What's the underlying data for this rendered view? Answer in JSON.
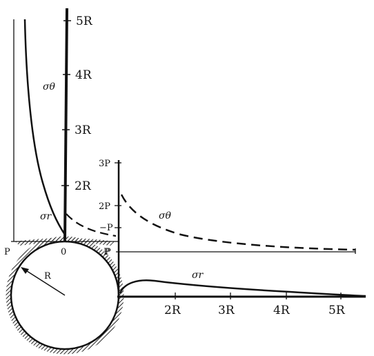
{
  "vertical_axis": {
    "ticks": [
      "2R",
      "3R",
      "4R",
      "5R"
    ]
  },
  "horizontal_axis": {
    "ticks": [
      "2R",
      "3R",
      "4R",
      "5R"
    ]
  },
  "stress_axis_vertical": {
    "ticks": [
      "3P",
      "2P",
      "P"
    ],
    "minus_p": "−P"
  },
  "stress_axis_horizontal": {
    "left_end": "P",
    "origin": "0",
    "right_end": "P"
  },
  "hole": {
    "radius_label": "R"
  },
  "curve_labels": {
    "sigma_theta_upper": "σθ",
    "sigma_r_upper": "σr",
    "sigma_theta_right": "σθ",
    "sigma_r_right": "σr"
  },
  "colors": {
    "ink": "#111111",
    "paper": "#ffffff"
  }
}
